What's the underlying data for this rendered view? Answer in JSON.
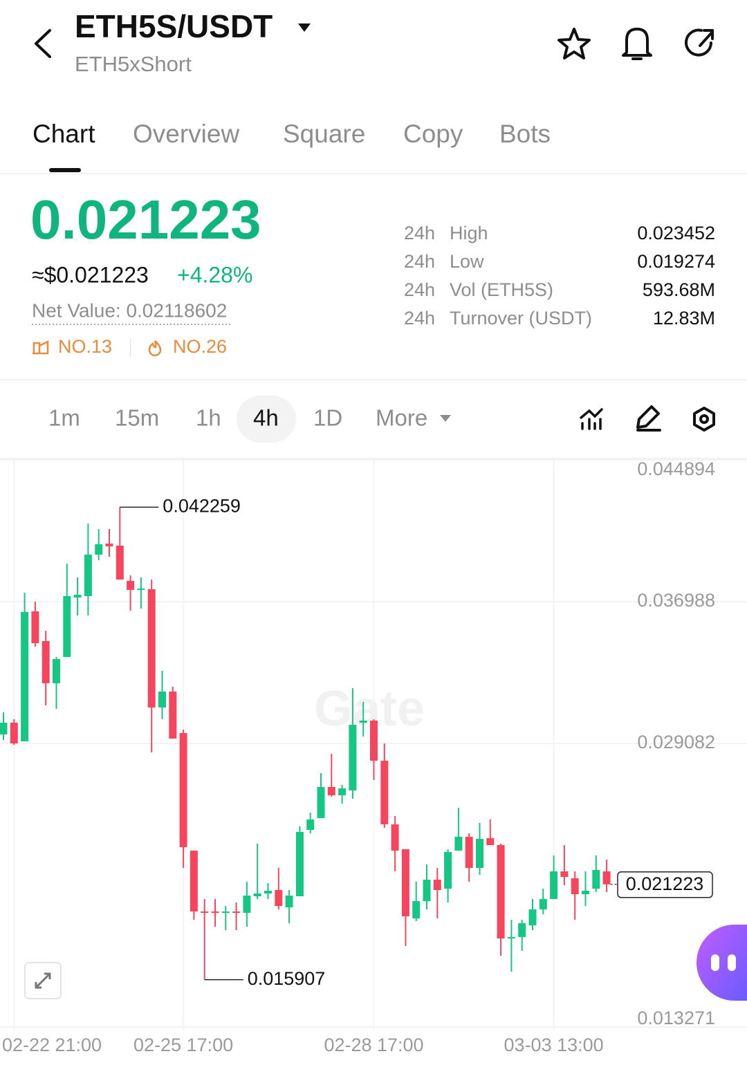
{
  "header": {
    "title": "ETH5S/USDT",
    "subtitle": "ETH5xShort"
  },
  "tabs": [
    "Chart",
    "Overview",
    "Square",
    "Copy",
    "Bots"
  ],
  "price": {
    "last": "0.021223",
    "usd": "≈$0.021223",
    "change": "+4.28%",
    "net_value": "Net Value: 0.02118602",
    "ranks": [
      "NO.13",
      "NO.26"
    ]
  },
  "stats": [
    {
      "period": "24h",
      "label": "High",
      "value": "0.023452"
    },
    {
      "period": "24h",
      "label": "Low",
      "value": "0.019274"
    },
    {
      "period": "24h",
      "label": "Vol (ETH5S)",
      "value": "593.68M"
    },
    {
      "period": "24h",
      "label": "Turnover (USDT)",
      "value": "12.83M"
    }
  ],
  "intervals": [
    "1m",
    "15m",
    "1h",
    "4h",
    "1D",
    "More"
  ],
  "chart_data": {
    "type": "candlestick",
    "watermark": "Gate",
    "up_color": "#16c784",
    "down_color": "#f6465d",
    "categories": [
      null,
      "02-22 21:00",
      null,
      null,
      null,
      null,
      null,
      null,
      null,
      null,
      null,
      null,
      null,
      null,
      null,
      null,
      null,
      "02-25 17:00",
      null,
      null,
      null,
      null,
      null,
      null,
      null,
      null,
      null,
      null,
      null,
      null,
      null,
      null,
      null,
      null,
      null,
      "02-28 17:00",
      null,
      null,
      null,
      null,
      null,
      null,
      null,
      null,
      null,
      null,
      null,
      null,
      null,
      null,
      null,
      null,
      "03-03 13:00",
      null,
      null,
      null,
      null,
      null
    ],
    "open": [
      0.029584,
      0.030239,
      0.029198,
      0.036448,
      0.03479,
      0.032438,
      0.033903,
      0.03722,
      0.037297,
      0.039611,
      0.040228,
      0.040112,
      0.038145,
      0.037644,
      0.037682,
      0.031088,
      0.031975,
      0.029661,
      0.023105,
      0.019711,
      0.019711,
      0.019634,
      0.019711,
      0.019634,
      0.020559,
      0.020714,
      0.020907,
      0.019942,
      0.020559,
      0.024262,
      0.024917,
      0.026653,
      0.02619,
      0.02646,
      0.030239,
      0.030355,
      0.028118,
      0.02457,
      0.023182,
      0.019325,
      0.02029,
      0.021485,
      0.020984,
      0.023105,
      0.023876,
      0.022141,
      0.023799,
      0.023413,
      0.018207,
      0.018284,
      0.01894,
      0.019827,
      0.020405,
      0.021948,
      0.021562,
      0.020675,
      0.020984,
      0.021948
    ],
    "high": [
      0.030818,
      0.030432,
      0.03749,
      0.036988,
      0.035368,
      0.033903,
      0.039109,
      0.038338,
      0.041346,
      0.041037,
      0.041037,
      0.042259,
      0.038454,
      0.038338,
      0.038222,
      0.033132,
      0.032245,
      0.029854,
      0.023105,
      0.020405,
      0.020405,
      0.02002,
      0.020212,
      0.021369,
      0.02349,
      0.021292,
      0.022141,
      0.020907,
      0.024455,
      0.025226,
      0.027424,
      0.028504,
      0.026768,
      0.032168,
      0.031396,
      0.030432,
      0.029082,
      0.025033,
      0.023182,
      0.021369,
      0.022333,
      0.022141,
      0.023182,
      0.025496,
      0.024069,
      0.024647,
      0.02484,
      0.02349,
      0.019248,
      0.019248,
      0.020405,
      0.020984,
      0.022835,
      0.023413,
      0.021948,
      0.021948,
      0.022835,
      0.022603
    ],
    "low": [
      0.029275,
      0.029005,
      0.029198,
      0.034481,
      0.031203,
      0.031011,
      0.033903,
      0.036217,
      0.036217,
      0.039302,
      0.039495,
      0.038222,
      0.036487,
      0.036603,
      0.028581,
      0.030432,
      0.029352,
      0.022141,
      0.019248,
      0.015907,
      0.018863,
      0.01867,
      0.01867,
      0.018863,
      0.020405,
      0.020405,
      0.019827,
      0.019055,
      0.020559,
      0.024069,
      0.024917,
      0.026113,
      0.025727,
      0.025997,
      0.029468,
      0.027038,
      0.024377,
      0.021948,
      0.017783,
      0.019171,
      0.019827,
      0.019325,
      0.020212,
      0.023105,
      0.021369,
      0.021755,
      0.023413,
      0.017243,
      0.016356,
      0.017513,
      0.01867,
      0.019557,
      0.020405,
      0.021177,
      0.019248,
      0.02002,
      0.020791,
      0.020791
    ],
    "close": [
      0.030239,
      0.029082,
      0.03641,
      0.034674,
      0.032438,
      0.033787,
      0.037297,
      0.037374,
      0.039611,
      0.040189,
      0.040073,
      0.038222,
      0.037644,
      0.037721,
      0.031088,
      0.031975,
      0.029352,
      0.023298,
      0.019711,
      0.019634,
      0.019634,
      0.019711,
      0.019634,
      0.020598,
      0.020714,
      0.020868,
      0.02002,
      0.020598,
      0.024146,
      0.02484,
      0.026653,
      0.02619,
      0.026576,
      0.030124,
      0.030355,
      0.028118,
      0.02457,
      0.023105,
      0.019441,
      0.02029,
      0.021485,
      0.020907,
      0.023028,
      0.023876,
      0.022141,
      0.02376,
      0.023413,
      0.018207,
      0.018284,
      0.019055,
      0.019827,
      0.020405,
      0.021948,
      0.021639,
      0.020675,
      0.020868,
      0.022025,
      0.021223
    ],
    "ylim": [
      0.013271,
      0.044894
    ],
    "yticks": [
      0.044894,
      0.036988,
      0.029082,
      0.013271
    ],
    "grid": true
  }
}
